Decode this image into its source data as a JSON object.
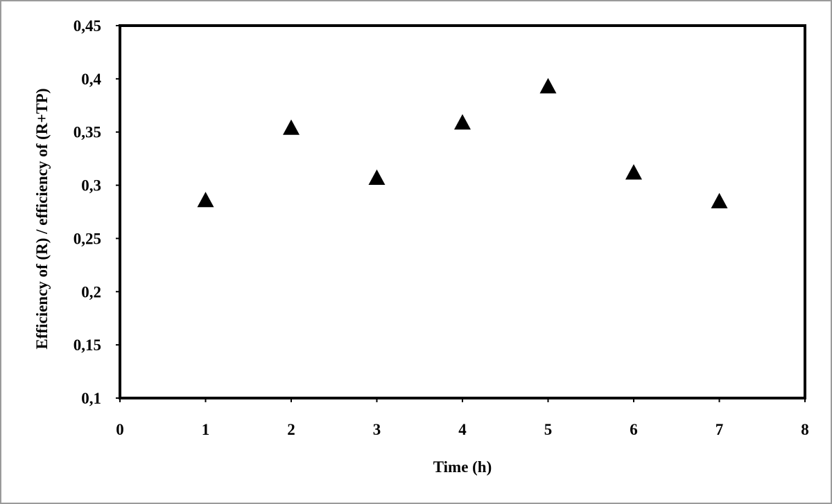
{
  "chart_data": {
    "type": "scatter",
    "title": "",
    "xlabel": "Time (h)",
    "ylabel": "Efficiency of (R) / efficiency of (R+TP)",
    "xlim": [
      0,
      8
    ],
    "ylim": [
      0.1,
      0.45
    ],
    "x_ticks": [
      0,
      1,
      2,
      3,
      4,
      5,
      6,
      7,
      8
    ],
    "x_tick_labels": [
      "0",
      "1",
      "2",
      "3",
      "4",
      "5",
      "6",
      "7",
      "8"
    ],
    "y_ticks": [
      0.1,
      0.15,
      0.2,
      0.25,
      0.3,
      0.35,
      0.4,
      0.45
    ],
    "y_tick_labels": [
      "0,1",
      "0,15",
      "0,2",
      "0,25",
      "0,3",
      "0,35",
      "0,4",
      "0,45"
    ],
    "grid": false,
    "legend": "none",
    "marker": "triangle",
    "marker_color": "#000000",
    "series": [
      {
        "x": [
          1,
          2,
          3,
          4,
          5,
          6,
          7
        ],
        "y": [
          0.286,
          0.354,
          0.307,
          0.359,
          0.393,
          0.312,
          0.285
        ]
      }
    ]
  }
}
